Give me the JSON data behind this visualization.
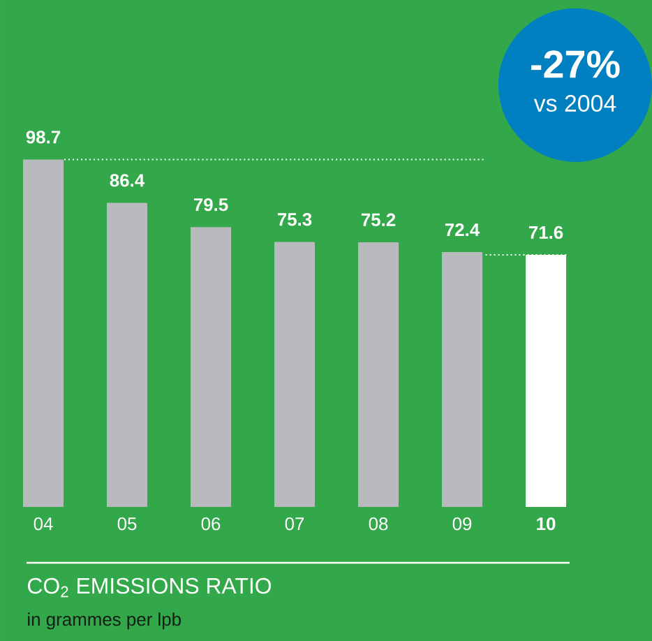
{
  "chart_data": {
    "type": "bar",
    "title": "CO$_{2}$ EMISSIONS RATIO",
    "subtitle": "in grammes per lpb",
    "categories": [
      "04",
      "05",
      "06",
      "07",
      "08",
      "09",
      "10"
    ],
    "values": [
      98.7,
      86.4,
      79.5,
      75.3,
      75.2,
      72.4,
      71.6
    ],
    "colors": [
      "#b8babd",
      "#b8babd",
      "#b8babd",
      "#b8babd",
      "#b8babd",
      "#b8babd",
      "#ffffff"
    ],
    "data_labels": true,
    "annotations": [
      "-27%",
      "vs 2004"
    ],
    "ref_lines": [
      {
        "axis": "y",
        "value": 98.7,
        "color": "#ffffff",
        "line_style": "dotted"
      },
      {
        "axis": "y",
        "value": 71.6,
        "color": "#ffffff",
        "line_style": "dotted"
      }
    ]
  }
}
